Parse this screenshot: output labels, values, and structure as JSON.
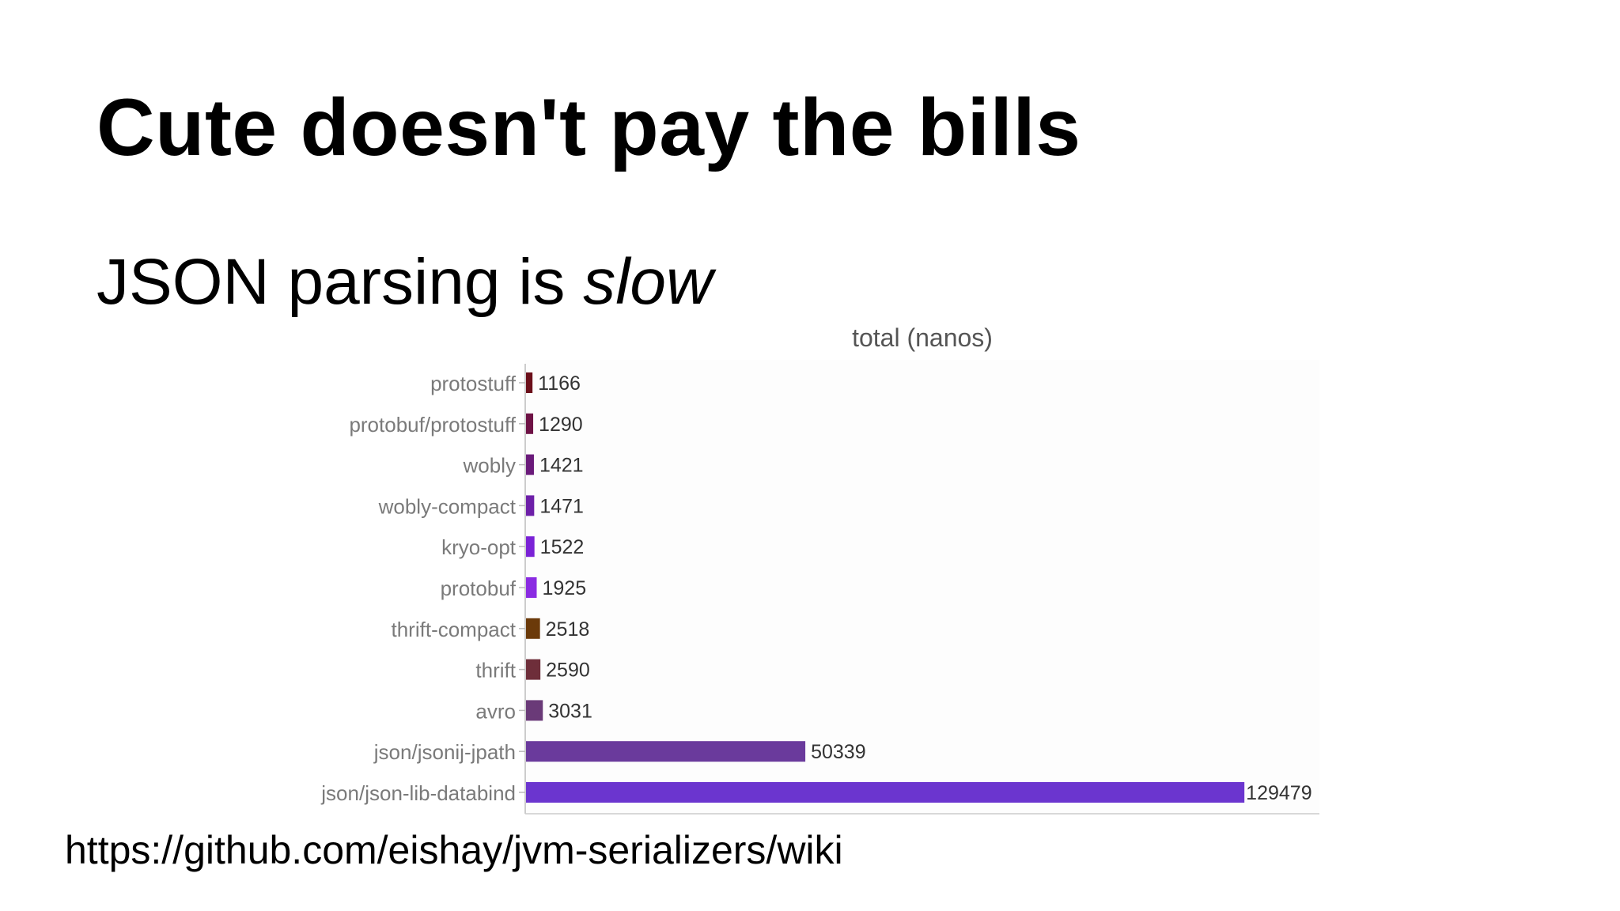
{
  "slide": {
    "title": "Cute doesn't pay the bills",
    "subtitle_plain": "JSON parsing is ",
    "subtitle_emphasis": "slow",
    "source_url": "https://github.com/eishay/jvm-serializers/wiki"
  },
  "chart_data": {
    "type": "bar",
    "orientation": "horizontal",
    "title": "total (nanos)",
    "xlabel": "",
    "ylabel": "",
    "grid": false,
    "legend": "none",
    "categories": [
      "protostuff",
      "protobuf/protostuff",
      "wobly",
      "wobly-compact",
      "kryo-opt",
      "protobuf",
      "thrift-compact",
      "thrift",
      "avro",
      "json/jsonij-jpath",
      "json/json-lib-databind"
    ],
    "values": [
      1166,
      1290,
      1421,
      1471,
      1522,
      1925,
      2518,
      2590,
      3031,
      50339,
      129479
    ],
    "value_labels": [
      "1166",
      "1290",
      "1421",
      "1471",
      "1522",
      "1925",
      "2518",
      "2590",
      "3031",
      "50339",
      "129479"
    ],
    "colors": [
      "#6b0f1a",
      "#6e1245",
      "#6a1a7a",
      "#6d1fa8",
      "#7a22d6",
      "#8a2be2",
      "#6b3a0a",
      "#6e2e3a",
      "#6a3a78",
      "#6a3a9c",
      "#6b35cf"
    ],
    "xlim": [
      0,
      142000
    ]
  }
}
